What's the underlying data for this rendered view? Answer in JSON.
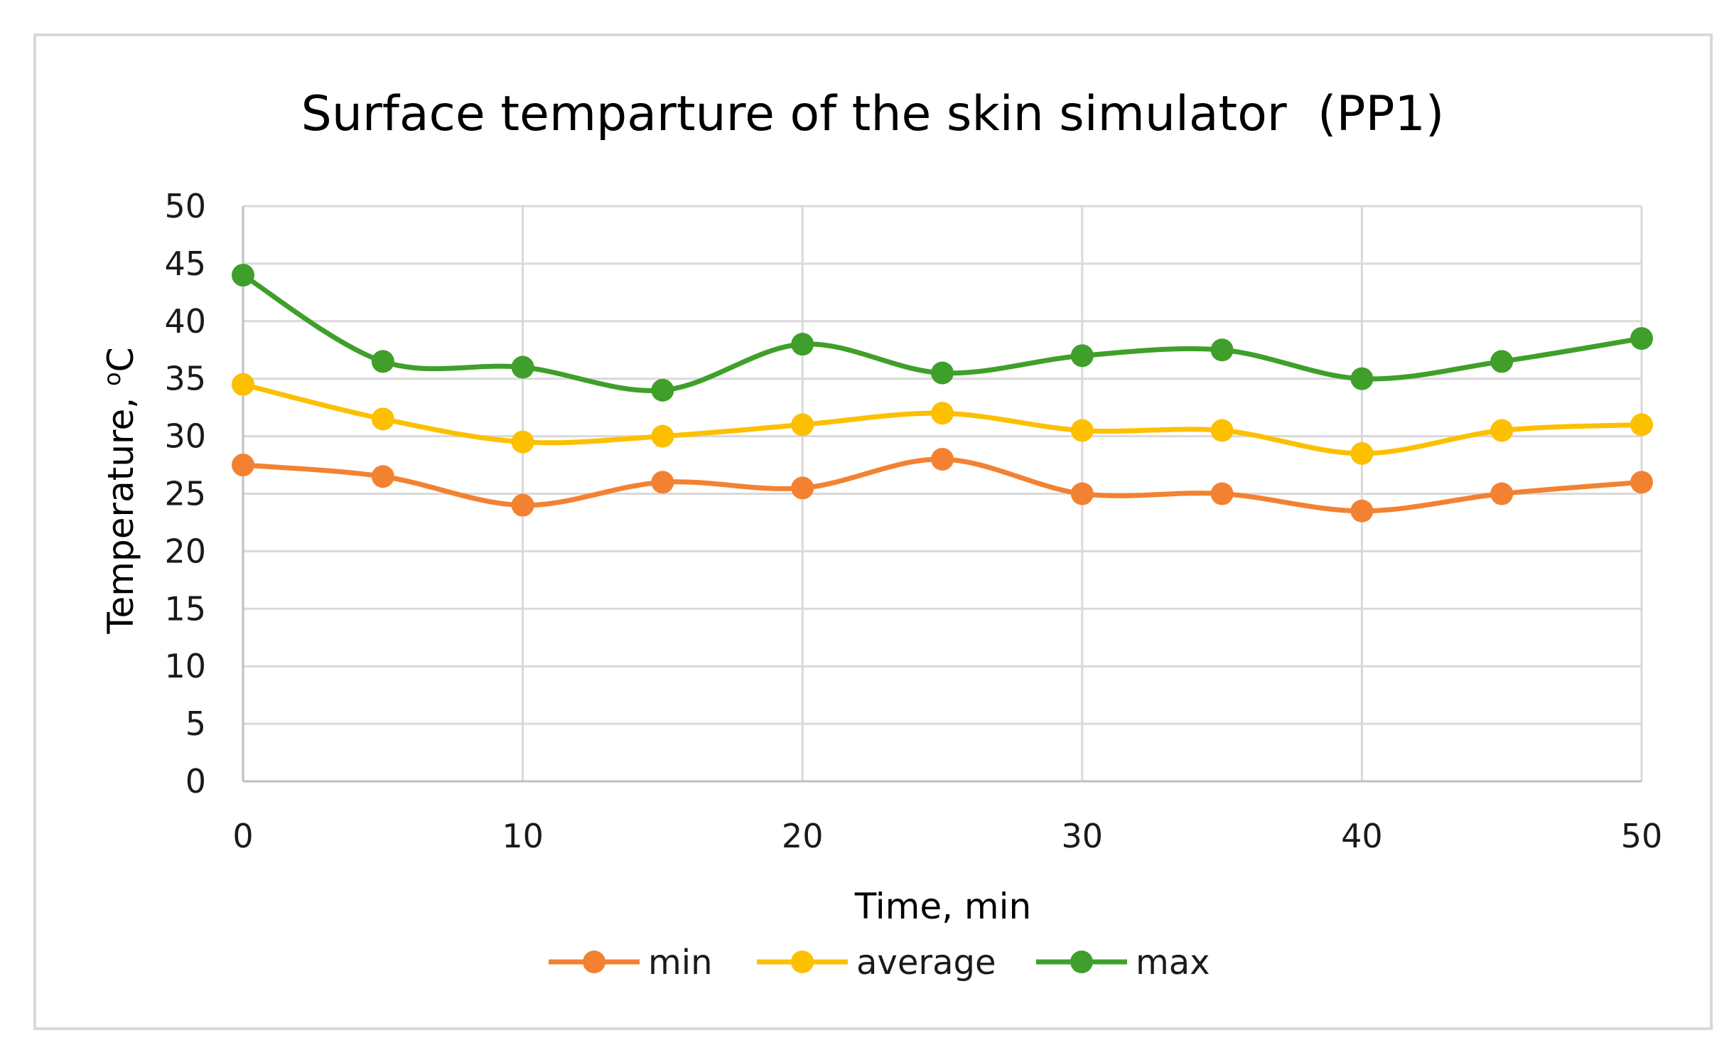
{
  "chart_data": {
    "type": "line",
    "title": "Surface temparture of the skin simulator  (PP1)",
    "xlabel": "Time, min",
    "ylabel": "Temperature, ",
    "ylabel_unit": "oC",
    "xlim": [
      0,
      50
    ],
    "ylim": [
      0,
      50
    ],
    "xticks": [
      0,
      10,
      20,
      30,
      40,
      50
    ],
    "yticks": [
      0,
      5,
      10,
      15,
      20,
      25,
      30,
      35,
      40,
      45,
      50
    ],
    "grid": true,
    "legend_position": "bottom",
    "x": [
      0,
      5,
      10,
      15,
      20,
      25,
      30,
      35,
      40,
      45,
      50
    ],
    "series": [
      {
        "name": "min",
        "color": "#f28232",
        "values": [
          27.5,
          26.5,
          24,
          26,
          25.5,
          28,
          25,
          25,
          23.5,
          25,
          26
        ]
      },
      {
        "name": "average",
        "color": "#fcc000",
        "values": [
          34.5,
          31.5,
          29.5,
          30,
          31,
          32,
          30.5,
          30.5,
          28.5,
          30.5,
          31
        ]
      },
      {
        "name": "max",
        "color": "#3f9f2a",
        "values": [
          44,
          36.5,
          36,
          34,
          38,
          35.5,
          37,
          37.5,
          35,
          36.5,
          38.5
        ]
      }
    ]
  }
}
